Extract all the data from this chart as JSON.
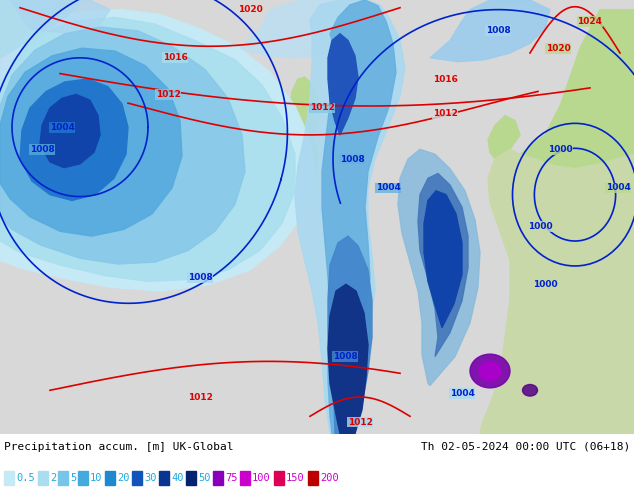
{
  "title_left": "Precipitation accum. [m] UK-Global",
  "title_right": "Th 02-05-2024 00:00 UTC (06+18)",
  "legend_values": [
    "0.5",
    "2",
    "5",
    "10",
    "20",
    "30",
    "40",
    "50",
    "75",
    "100",
    "150",
    "200"
  ],
  "legend_colors_cyan": [
    "#aaeeff",
    "#88ddff",
    "#55ccff",
    "#22aaff",
    "#0088ff",
    "#0055dd",
    "#003399",
    "#002277"
  ],
  "legend_colors_magenta": [
    "#aa00ff",
    "#ff00ff",
    "#ff0055",
    "#cc0000"
  ],
  "bg_color": "#d8d8d8",
  "ocean_color": "#d8d8d8",
  "land_color_green": "#b8d890",
  "land_color_light": "#c8d8a8",
  "precip_c1": "#c8eeff",
  "precip_c2": "#88ccff",
  "precip_c3": "#44aaff",
  "precip_c4": "#2288ee",
  "precip_c5": "#0055cc",
  "precip_c6": "#003399",
  "precip_c7": "#8800cc",
  "isobar_red": "#dd0000",
  "isobar_blue": "#0022cc",
  "fig_width": 6.34,
  "fig_height": 4.9
}
